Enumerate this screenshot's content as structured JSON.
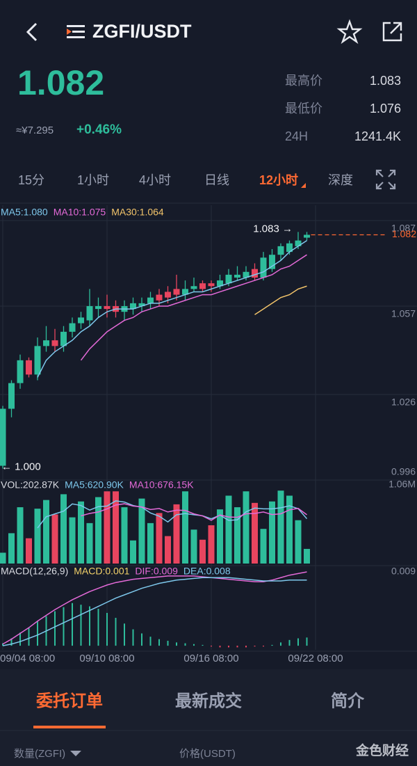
{
  "header": {
    "title": "ZGFI/USDT"
  },
  "ticker": {
    "price": "1.082",
    "cny": "≈¥7.295",
    "change": "+0.46%",
    "stats": [
      {
        "label": "最高价",
        "value": "1.083"
      },
      {
        "label": "最低价",
        "value": "1.076"
      },
      {
        "label": "24H",
        "value": "1241.4K"
      }
    ]
  },
  "intervals": {
    "items": [
      "15分",
      "1小时",
      "4小时",
      "日线",
      "12小时",
      "深度"
    ],
    "active": 4,
    "active_color": "#ff6a33"
  },
  "chart_data": [
    {
      "type": "candlestick",
      "up_color": "#2ebd9b",
      "down_color": "#e8455f",
      "open": [
        1.001,
        1.021,
        1.03,
        1.038,
        1.033,
        1.043,
        1.045,
        1.043,
        1.048,
        1.051,
        1.052,
        1.056,
        1.057,
        1.057,
        1.055,
        1.056,
        1.057,
        1.058,
        1.061,
        1.062,
        1.063,
        1.061,
        1.063,
        1.065,
        1.065,
        1.064,
        1.065,
        1.067,
        1.067,
        1.07,
        1.067,
        1.07,
        1.075,
        1.076,
        1.078,
        1.081
      ],
      "high": [
        1.022,
        1.031,
        1.04,
        1.039,
        1.046,
        1.05,
        1.049,
        1.05,
        1.053,
        1.055,
        1.063,
        1.06,
        1.061,
        1.059,
        1.059,
        1.06,
        1.06,
        1.062,
        1.063,
        1.064,
        1.068,
        1.066,
        1.067,
        1.066,
        1.066,
        1.068,
        1.07,
        1.071,
        1.071,
        1.072,
        1.076,
        1.077,
        1.079,
        1.08,
        1.083,
        1.083
      ],
      "low": [
        1.0,
        1.018,
        1.028,
        1.032,
        1.031,
        1.041,
        1.041,
        1.041,
        1.046,
        1.049,
        1.05,
        1.053,
        1.053,
        1.053,
        1.052,
        1.054,
        1.055,
        1.056,
        1.057,
        1.058,
        1.059,
        1.059,
        1.062,
        1.062,
        1.062,
        1.063,
        1.064,
        1.066,
        1.066,
        1.066,
        1.066,
        1.069,
        1.073,
        1.075,
        1.077,
        1.08
      ],
      "close": [
        1.021,
        1.03,
        1.038,
        1.033,
        1.043,
        1.045,
        1.043,
        1.048,
        1.051,
        1.053,
        1.057,
        1.057,
        1.056,
        1.055,
        1.057,
        1.058,
        1.058,
        1.06,
        1.059,
        1.06,
        1.061,
        1.063,
        1.064,
        1.063,
        1.064,
        1.066,
        1.068,
        1.068,
        1.069,
        1.067,
        1.074,
        1.075,
        1.078,
        1.079,
        1.08,
        1.082
      ],
      "series": [
        {
          "label": "MA5:1.080",
          "color": "#7ec8ec",
          "values": [
            null,
            null,
            null,
            null,
            1.032,
            1.038,
            1.041,
            1.043,
            1.045,
            1.048,
            1.05,
            1.053,
            1.055,
            1.056,
            1.056,
            1.056,
            1.057,
            1.058,
            1.058,
            1.059,
            1.06,
            1.061,
            1.062,
            1.062,
            1.063,
            1.064,
            1.065,
            1.066,
            1.067,
            1.068,
            1.069,
            1.071,
            1.073,
            1.076,
            1.078,
            1.08
          ]
        },
        {
          "label": "MA10:1.075",
          "color": "#e46ad8",
          "values": [
            null,
            null,
            null,
            null,
            null,
            null,
            null,
            null,
            null,
            1.038,
            1.042,
            1.045,
            1.048,
            1.05,
            1.052,
            1.053,
            1.055,
            1.056,
            1.057,
            1.057,
            1.058,
            1.059,
            1.06,
            1.061,
            1.061,
            1.062,
            1.063,
            1.064,
            1.065,
            1.066,
            1.067,
            1.068,
            1.07,
            1.071,
            1.073,
            1.075
          ]
        },
        {
          "label": "MA30:1.064",
          "color": "#f3c46a",
          "values": [
            null,
            null,
            null,
            null,
            null,
            null,
            null,
            null,
            null,
            null,
            null,
            null,
            null,
            null,
            null,
            null,
            null,
            null,
            null,
            null,
            null,
            null,
            null,
            null,
            null,
            null,
            null,
            null,
            null,
            1.054,
            1.056,
            1.058,
            1.06,
            1.061,
            1.063,
            1.064
          ]
        }
      ],
      "ylim": [
        0.996,
        1.087
      ],
      "yticks": [
        0.996,
        1.026,
        1.057,
        1.087
      ],
      "high_label": "1.083 →",
      "low_label": "← 1.000",
      "last_price": {
        "value": 1.082,
        "label": "1.082",
        "color": "#ff6a33"
      }
    },
    {
      "type": "bar",
      "label": "VOL:202.87K",
      "values": [
        150,
        420,
        780,
        350,
        760,
        880,
        680,
        960,
        640,
        860,
        560,
        920,
        1000,
        1000,
        780,
        320,
        900,
        560,
        700,
        380,
        820,
        1000,
        470,
        330,
        530,
        750,
        940,
        780,
        1000,
        840,
        480,
        860,
        1010,
        940,
        600,
        202.87
      ],
      "series": [
        {
          "label": "MA5:620.90K",
          "color": "#7ec8ec",
          "values": [
            null,
            null,
            null,
            null,
            492,
            648,
            688,
            726,
            826,
            804,
            740,
            788,
            796,
            868,
            852,
            804,
            780,
            700,
            656,
            576,
            676,
            692,
            676,
            662,
            620,
            670,
            598,
            606,
            716,
            768,
            758,
            758,
            772,
            800,
            760,
            620.9
          ]
        },
        {
          "label": "MA10:676.15K",
          "color": "#e46ad8",
          "values": [
            null,
            null,
            null,
            null,
            null,
            null,
            null,
            null,
            null,
            660,
            694,
            714,
            757,
            811,
            828,
            796,
            784,
            748,
            762,
            714,
            740,
            736,
            688,
            659,
            598,
            673,
            645,
            641,
            689,
            694,
            714,
            678,
            689,
            744,
            764,
            676.15
          ]
        }
      ],
      "ylim": [
        0,
        1060
      ],
      "yticks": [
        {
          "value": 1060,
          "label": "1.06M"
        }
      ]
    },
    {
      "type": "macd",
      "title": "MACD(12,26,9)",
      "label": "MACD:0.001",
      "color": "#f3d26a",
      "values": [
        0.0003,
        0.0009,
        0.0016,
        0.0022,
        0.003,
        0.0036,
        0.0042,
        0.0047,
        0.0052,
        0.005,
        0.0048,
        0.0045,
        0.004,
        0.0034,
        0.0027,
        0.002,
        0.0015,
        0.0011,
        0.0008,
        0.0006,
        0.0004,
        0.0003,
        0.0002,
        0.0001,
        -0.0001,
        -0.0002,
        -0.0002,
        -0.0002,
        -0.0002,
        -0.0001,
        -0.0001,
        0.0001,
        0.0004,
        0.0007,
        0.0009,
        0.001
      ],
      "series": [
        {
          "label": "DIF:0.009",
          "color": "#e46ad8",
          "values": [
            0.0002,
            0.0008,
            0.0015,
            0.0022,
            0.003,
            0.0037,
            0.0044,
            0.005,
            0.0056,
            0.0061,
            0.0066,
            0.007,
            0.0074,
            0.0077,
            0.0079,
            0.0081,
            0.0082,
            0.0083,
            0.0084,
            0.0085,
            0.0085,
            0.0085,
            0.0085,
            0.0084,
            0.0083,
            0.0082,
            0.0081,
            0.008,
            0.0079,
            0.0078,
            0.0078,
            0.008,
            0.0083,
            0.0086,
            0.0088,
            0.009
          ]
        },
        {
          "label": "DEA:0.008",
          "color": "#7ec8ec",
          "values": [
            0,
            0.0002,
            0.0005,
            0.0009,
            0.0013,
            0.0018,
            0.0023,
            0.0028,
            0.0033,
            0.0038,
            0.0043,
            0.0048,
            0.0053,
            0.0058,
            0.0062,
            0.0066,
            0.007,
            0.0073,
            0.0076,
            0.0078,
            0.008,
            0.0081,
            0.0082,
            0.0083,
            0.0083,
            0.0083,
            0.0083,
            0.0082,
            0.0081,
            0.008,
            0.0079,
            0.0079,
            0.0079,
            0.008,
            0.008,
            0.008
          ]
        }
      ],
      "ylim": [
        -0.0005,
        0.009
      ],
      "yticks": [
        0.009
      ],
      "xticks": [
        {
          "value": 0,
          "label": "09/04 08:00"
        },
        {
          "value": 12,
          "label": "09/10 08:00"
        },
        {
          "value": 24,
          "label": "09/16 08:00"
        },
        {
          "value": 36,
          "label": "09/22 08:00"
        }
      ]
    }
  ],
  "bottom_tabs": {
    "items": [
      "委托订单",
      "最新成交",
      "简介"
    ],
    "active": 0
  },
  "columns": [
    "数量(ZGFI)",
    "价格(USDT)"
  ],
  "watermark": "金色财经"
}
